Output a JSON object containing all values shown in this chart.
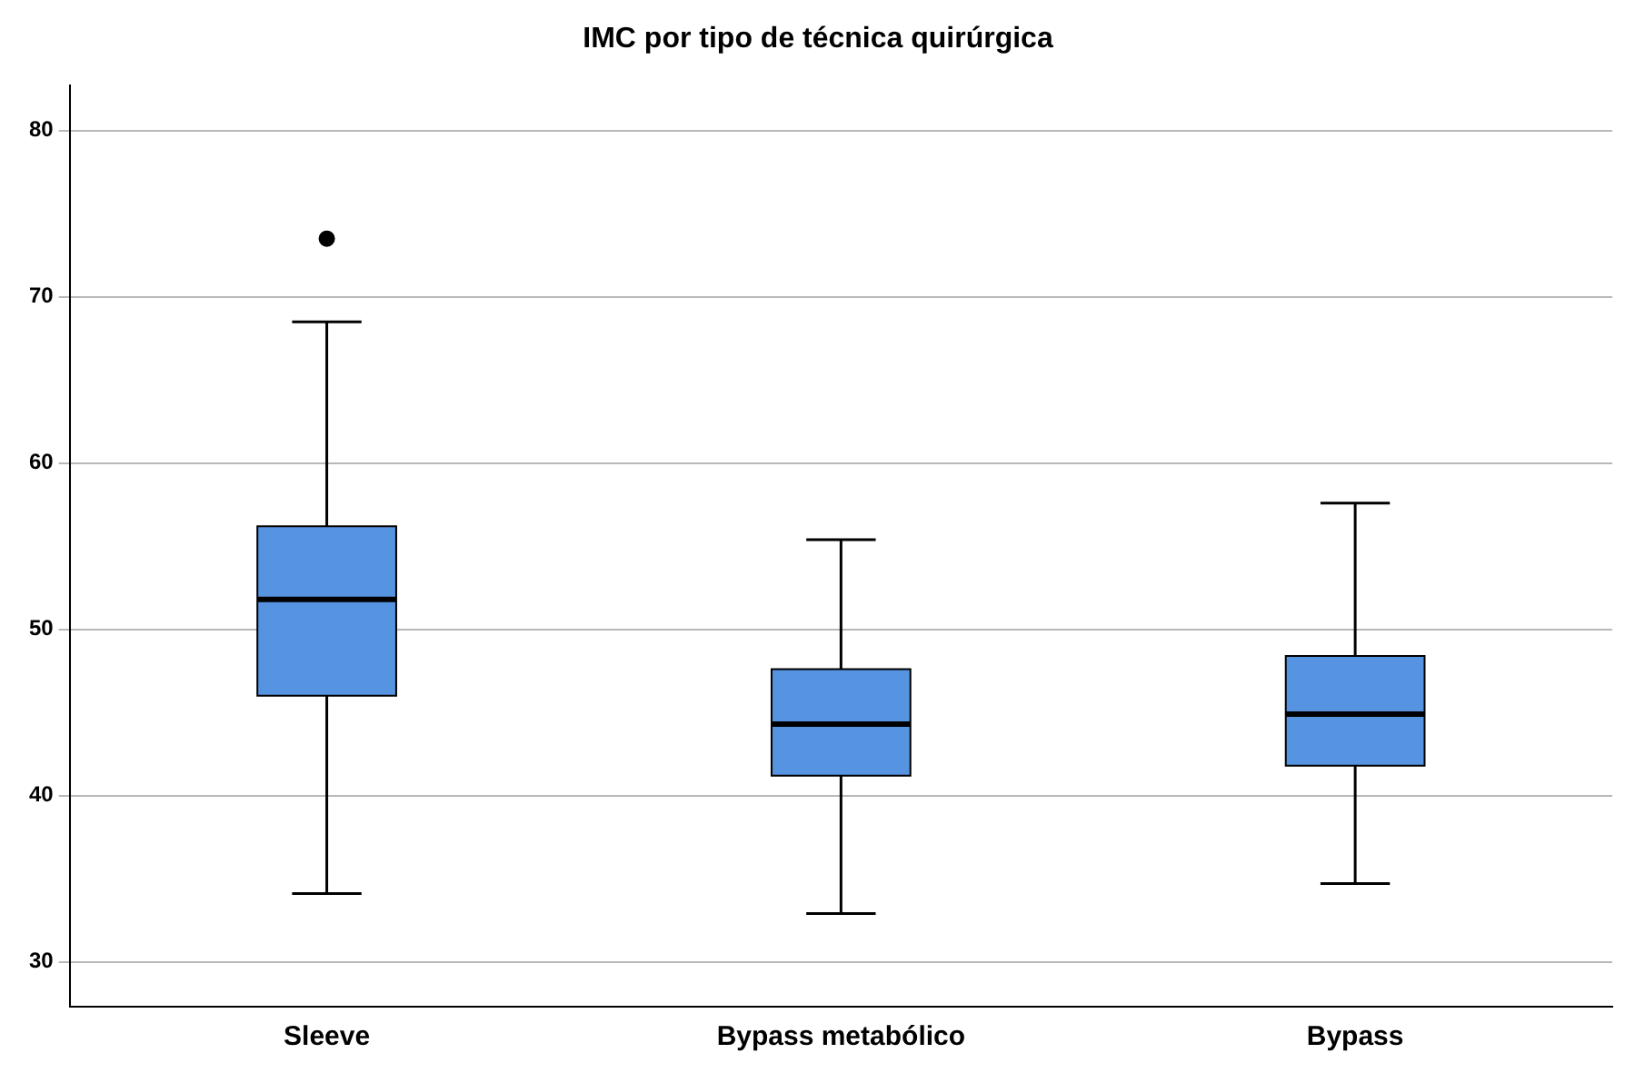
{
  "chart_data": {
    "type": "box",
    "title": "IMC por tipo de técnica quirúrgica",
    "categories": [
      "Sleeve",
      "Bypass metabólico",
      "Bypass"
    ],
    "color": "#5693e0",
    "boxes": [
      {
        "low": 34.1,
        "q1": 46.0,
        "median": 51.8,
        "q3": 56.2,
        "high": 68.5,
        "outliers": [
          73.5
        ]
      },
      {
        "low": 32.9,
        "q1": 41.2,
        "median": 44.3,
        "q3": 47.6,
        "high": 55.4
      },
      {
        "low": 34.7,
        "q1": 41.8,
        "median": 44.9,
        "q3": 48.4,
        "high": 57.6
      }
    ],
    "ylim": [
      27.3,
      82.7
    ],
    "yticks": [
      30,
      40,
      50,
      60,
      70,
      80
    ],
    "grid": "y"
  }
}
